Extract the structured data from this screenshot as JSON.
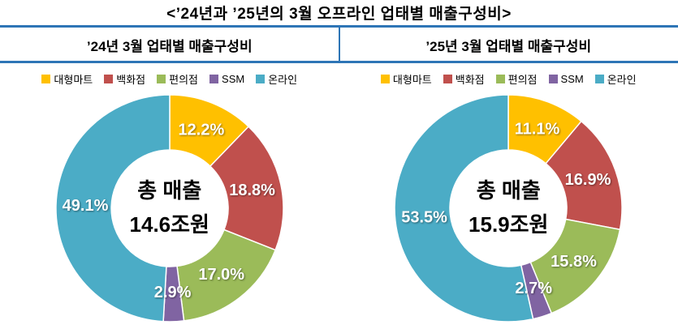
{
  "page_title": "<’24년과 ’25년의 3월 오프라인 업태별 매출구성비>",
  "colors": {
    "accent_blue": "#2E75B6",
    "series": [
      "#FFC000",
      "#C0504D",
      "#9BBB59",
      "#8064A2",
      "#4BACC6"
    ],
    "label_text": "#FFFFFF",
    "center_text": "#000000"
  },
  "chart_data": [
    {
      "type": "pie",
      "subtype": "donut",
      "title": "’24년 3월 업태별 매출구성비",
      "categories": [
        "대형마트",
        "백화점",
        "편의점",
        "SSM",
        "온라인"
      ],
      "values": [
        12.2,
        18.8,
        17.0,
        2.9,
        49.1
      ],
      "labels": [
        "12.2%",
        "18.8%",
        "17.0%",
        "2.9%",
        "49.1%"
      ],
      "center": {
        "line1": "총 매출",
        "line2": "14.6조원"
      },
      "legend_position": "top",
      "start_angle_deg": 0,
      "direction": "clockwise"
    },
    {
      "type": "pie",
      "subtype": "donut",
      "title": "’25년 3월 업태별 매출구성비",
      "categories": [
        "대형마트",
        "백화점",
        "편의점",
        "SSM",
        "온라인"
      ],
      "values": [
        11.1,
        16.9,
        15.8,
        2.7,
        53.5
      ],
      "labels": [
        "11.1%",
        "16.9%",
        "15.8%",
        "2.7%",
        "53.5%"
      ],
      "center": {
        "line1": "총 매출",
        "line2": "15.9조원"
      },
      "legend_position": "top",
      "start_angle_deg": 0,
      "direction": "clockwise"
    }
  ]
}
